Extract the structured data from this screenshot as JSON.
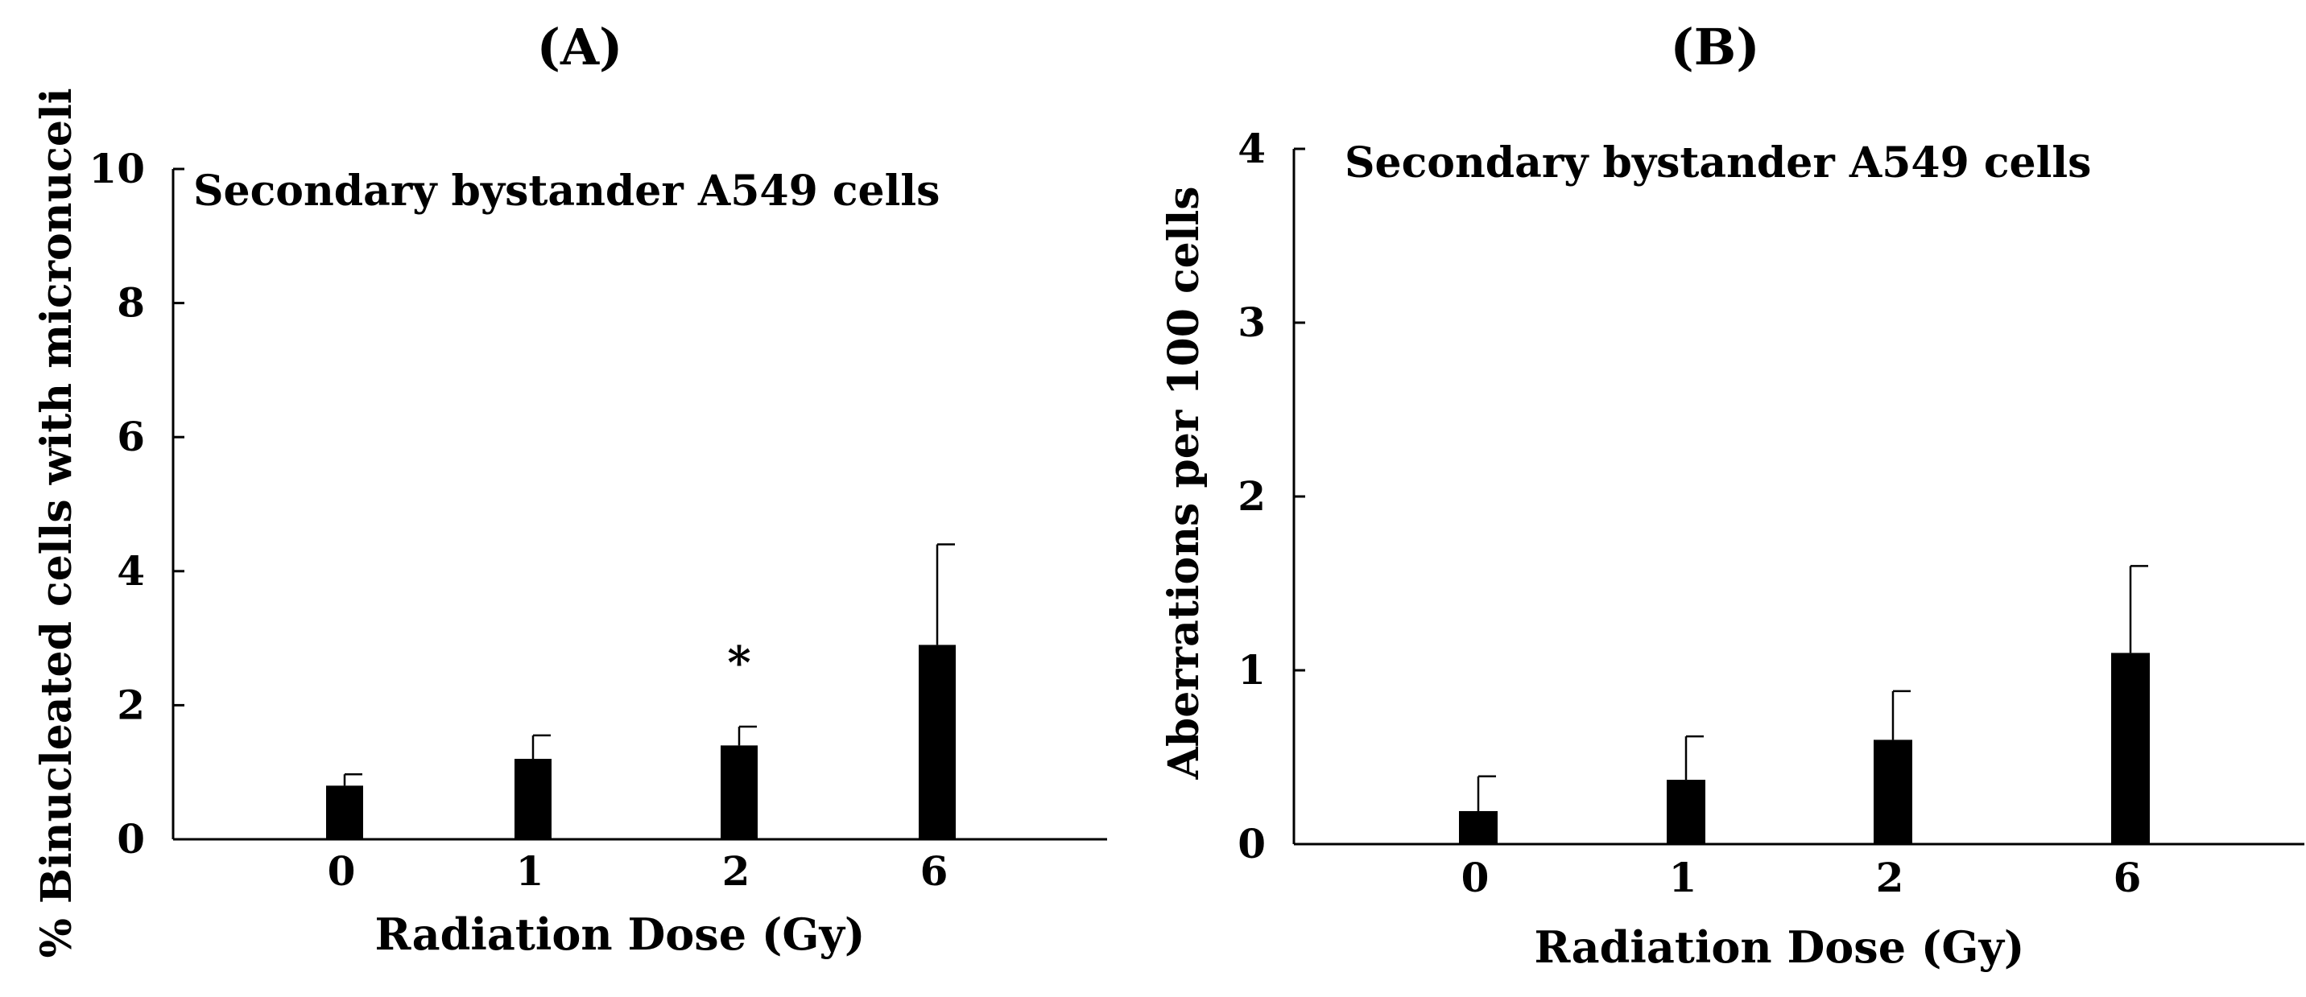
{
  "chart_data": [
    {
      "type": "bar",
      "panel_label": "(A)",
      "title": "Secondary bystander A549 cells",
      "xlabel": "Radiation Dose (Gy)",
      "ylabel": "% Binucleated cells with micronuceli",
      "categories": [
        "0",
        "1",
        "2",
        "6"
      ],
      "values": [
        0.8,
        1.2,
        1.4,
        2.9
      ],
      "errors": [
        0.17,
        0.35,
        0.28,
        1.5
      ],
      "significance": [
        "",
        "",
        "*",
        ""
      ],
      "ylim": [
        0,
        10
      ],
      "yticks": [
        "0",
        "2",
        "4",
        "6",
        "8",
        "10"
      ],
      "bar_color": "#000000",
      "grid": false
    },
    {
      "type": "bar",
      "panel_label": "(B)",
      "title": "Secondary bystander A549 cells",
      "xlabel": "Radiation Dose (Gy)",
      "ylabel": "Aberrations per 100 cells",
      "categories": [
        "0",
        "1",
        "2",
        "6"
      ],
      "values": [
        0.19,
        0.37,
        0.6,
        1.1
      ],
      "errors": [
        0.2,
        0.25,
        0.28,
        0.5
      ],
      "significance": [
        "",
        "",
        "",
        ""
      ],
      "ylim": [
        0,
        4
      ],
      "yticks": [
        "0",
        "1",
        "2",
        "3",
        "4"
      ],
      "bar_color": "#000000",
      "grid": false
    }
  ]
}
